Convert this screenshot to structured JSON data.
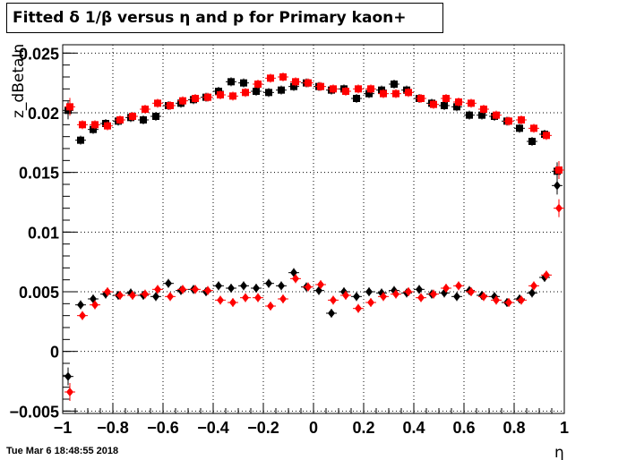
{
  "chart_data": {
    "type": "scatter",
    "title": "Fitted δ 1/β versus η and p for Primary kaon+",
    "xlabel": "η",
    "ylabel": "z_dBetaIn",
    "xlim": [
      -1,
      1
    ],
    "ylim": [
      -0.0052,
      0.0257
    ],
    "x_ticks": [
      "−1",
      "−0.8",
      "−0.6",
      "−0.4",
      "−0.2",
      "0",
      "0.2",
      "0.4",
      "0.6",
      "0.8",
      "1"
    ],
    "y_ticks": [
      "−0.005",
      "0",
      "0.005",
      "0.01",
      "0.015",
      "0.02",
      "0.025"
    ],
    "grid": true,
    "x_values": [
      -0.975,
      -0.925,
      -0.875,
      -0.825,
      -0.775,
      -0.725,
      -0.675,
      -0.625,
      -0.575,
      -0.525,
      -0.475,
      -0.425,
      -0.375,
      -0.325,
      -0.275,
      -0.225,
      -0.175,
      -0.125,
      -0.075,
      -0.025,
      0.025,
      0.075,
      0.125,
      0.175,
      0.225,
      0.275,
      0.325,
      0.375,
      0.425,
      0.475,
      0.525,
      0.575,
      0.625,
      0.675,
      0.725,
      0.775,
      0.825,
      0.875,
      0.925,
      0.975
    ],
    "series": [
      {
        "color": "#000000",
        "marker": "square",
        "values": [
          0.0202,
          0.0177,
          0.0186,
          0.0191,
          0.0193,
          0.0196,
          0.0194,
          0.0197,
          0.0206,
          0.0208,
          0.0211,
          0.0213,
          0.0218,
          0.0226,
          0.0225,
          0.0218,
          0.0217,
          0.0219,
          0.0222,
          0.0225,
          0.0222,
          0.0219,
          0.022,
          0.0212,
          0.0216,
          0.0219,
          0.0224,
          0.0219,
          0.0212,
          0.0208,
          0.0206,
          0.0205,
          0.0198,
          0.0198,
          0.0197,
          0.0193,
          0.0187,
          0.0176,
          0.0182,
          0.0151
        ]
      },
      {
        "color": "#ff0000",
        "marker": "square",
        "values": [
          0.0205,
          0.019,
          0.019,
          0.0189,
          0.0194,
          0.0197,
          0.0203,
          0.0208,
          0.0206,
          0.021,
          0.0212,
          0.0213,
          0.0215,
          0.0214,
          0.0217,
          0.0224,
          0.0229,
          0.023,
          0.0226,
          0.0225,
          0.0222,
          0.022,
          0.0218,
          0.022,
          0.022,
          0.0216,
          0.0216,
          0.0217,
          0.0212,
          0.0207,
          0.0212,
          0.0209,
          0.0208,
          0.0203,
          0.0198,
          0.0193,
          0.0194,
          0.0187,
          0.0181,
          0.0152
        ]
      },
      {
        "color": "#000000",
        "marker": "diamond",
        "values": [
          -0.0021,
          0.0039,
          0.0044,
          0.0048,
          0.0047,
          0.0049,
          0.0047,
          0.0046,
          0.0057,
          0.0051,
          0.0052,
          0.005,
          0.0055,
          0.0053,
          0.0055,
          0.0053,
          0.0057,
          0.0055,
          0.0066,
          0.0054,
          0.0051,
          0.0032,
          0.005,
          0.0046,
          0.005,
          0.0049,
          0.0051,
          0.0049,
          0.0052,
          0.0048,
          0.0049,
          0.0046,
          0.0051,
          0.0047,
          0.0046,
          0.0041,
          0.0044,
          0.0049,
          0.0062,
          0.0139
        ]
      },
      {
        "color": "#ff0000",
        "marker": "diamond",
        "values": [
          -0.0034,
          0.003,
          0.0039,
          0.005,
          0.0047,
          0.0047,
          0.0048,
          0.0052,
          0.0046,
          0.0052,
          0.0052,
          0.0051,
          0.0043,
          0.0041,
          0.0045,
          0.0045,
          0.0038,
          0.0044,
          0.0061,
          0.0054,
          0.0056,
          0.0043,
          0.0047,
          0.0036,
          0.0041,
          0.0046,
          0.0048,
          0.005,
          0.0045,
          0.0048,
          0.0053,
          0.0055,
          0.005,
          0.0046,
          0.0043,
          0.0041,
          0.0043,
          0.0055,
          0.0064,
          0.012
        ]
      }
    ],
    "timestamp": "Tue Mar  6 18:48:55 2018"
  }
}
